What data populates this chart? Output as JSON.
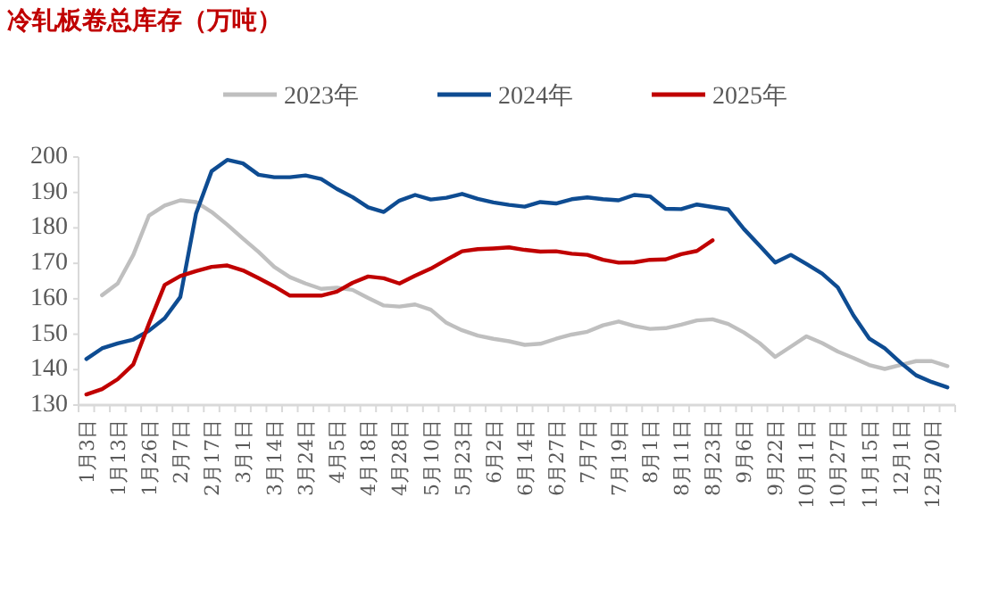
{
  "chart_data": {
    "type": "line",
    "title": "冷轧板卷总库存（万吨）",
    "categories": [
      "1月3日",
      null,
      "1月13日",
      null,
      "1月26日",
      null,
      "2月7日",
      null,
      "2月17日",
      null,
      "3月1日",
      null,
      "3月14日",
      null,
      "3月24日",
      null,
      "4月5日",
      null,
      "4月18日",
      null,
      "4月28日",
      null,
      "5月10日",
      null,
      "5月23日",
      null,
      "6月2日",
      null,
      "6月14日",
      null,
      "6月27日",
      null,
      "7月7日",
      null,
      "7月19日",
      null,
      "8月1日",
      null,
      "8月11日",
      null,
      "8月23日",
      null,
      "9月6日",
      null,
      "9月22日",
      null,
      "10月11日",
      null,
      "10月27日",
      null,
      "11月15日",
      null,
      "12月1日",
      null,
      "12月20日",
      null
    ],
    "series": [
      {
        "name": "2023年",
        "color": "#bfbfbf",
        "values": [
          null,
          161,
          164.3,
          172.4,
          183.5,
          186.3,
          187.8,
          187.3,
          184.5,
          180.9,
          177,
          173.2,
          169,
          166.1,
          164.3,
          162.8,
          163.1,
          162.5,
          160.2,
          158.1,
          157.8,
          158.4,
          156.9,
          153.2,
          151.1,
          149.6,
          148.7,
          148,
          147,
          147.3,
          148.7,
          149.9,
          150.7,
          152.5,
          153.6,
          152.3,
          151.5,
          151.7,
          152.7,
          153.9,
          154.2,
          152.9,
          150.5,
          147.5,
          143.6,
          146.5,
          149.4,
          147.5,
          145.1,
          143.3,
          141.3,
          140.2,
          141.3,
          142.4,
          142.4,
          141
        ]
      },
      {
        "name": "2024年",
        "color": "#0e4c92",
        "values": [
          143,
          146,
          147.4,
          148.5,
          151,
          154.5,
          160.5,
          184,
          196,
          199.2,
          198.2,
          195,
          194.3,
          194.3,
          194.8,
          193.8,
          191,
          188.7,
          185.8,
          184.5,
          187.7,
          189.3,
          188,
          188.5,
          189.6,
          188.2,
          187.2,
          186.5,
          186,
          187.3,
          186.9,
          188.1,
          188.6,
          188.1,
          187.8,
          189.3,
          188.9,
          185.4,
          185.3,
          186.6,
          185.9,
          185.2,
          179.7,
          175,
          170.2,
          172.4,
          169.8,
          167.1,
          163.2,
          155.3,
          148.8,
          146,
          142,
          138.4,
          136.5,
          135
        ]
      },
      {
        "name": "2025年",
        "color": "#c00000",
        "values": [
          133,
          134.5,
          137.3,
          141.5,
          153,
          163.9,
          166.4,
          167.8,
          169,
          169.4,
          168,
          165.8,
          163.5,
          160.9,
          160.9,
          160.9,
          162,
          164.5,
          166.3,
          165.8,
          164.3,
          166.5,
          168.5,
          171,
          173.4,
          174,
          174.2,
          174.5,
          173.8,
          173.3,
          173.4,
          172.7,
          172.4,
          171,
          170.2,
          170.3,
          171,
          171.1,
          172.6,
          173.5,
          176.5,
          null,
          null,
          null,
          null,
          null,
          null,
          null,
          null,
          null,
          null,
          null,
          null,
          null,
          null,
          null
        ]
      }
    ],
    "ylim": [
      130,
      200
    ],
    "yticks": [
      130,
      140,
      150,
      160,
      170,
      180,
      190,
      200
    ],
    "legend": "top"
  }
}
